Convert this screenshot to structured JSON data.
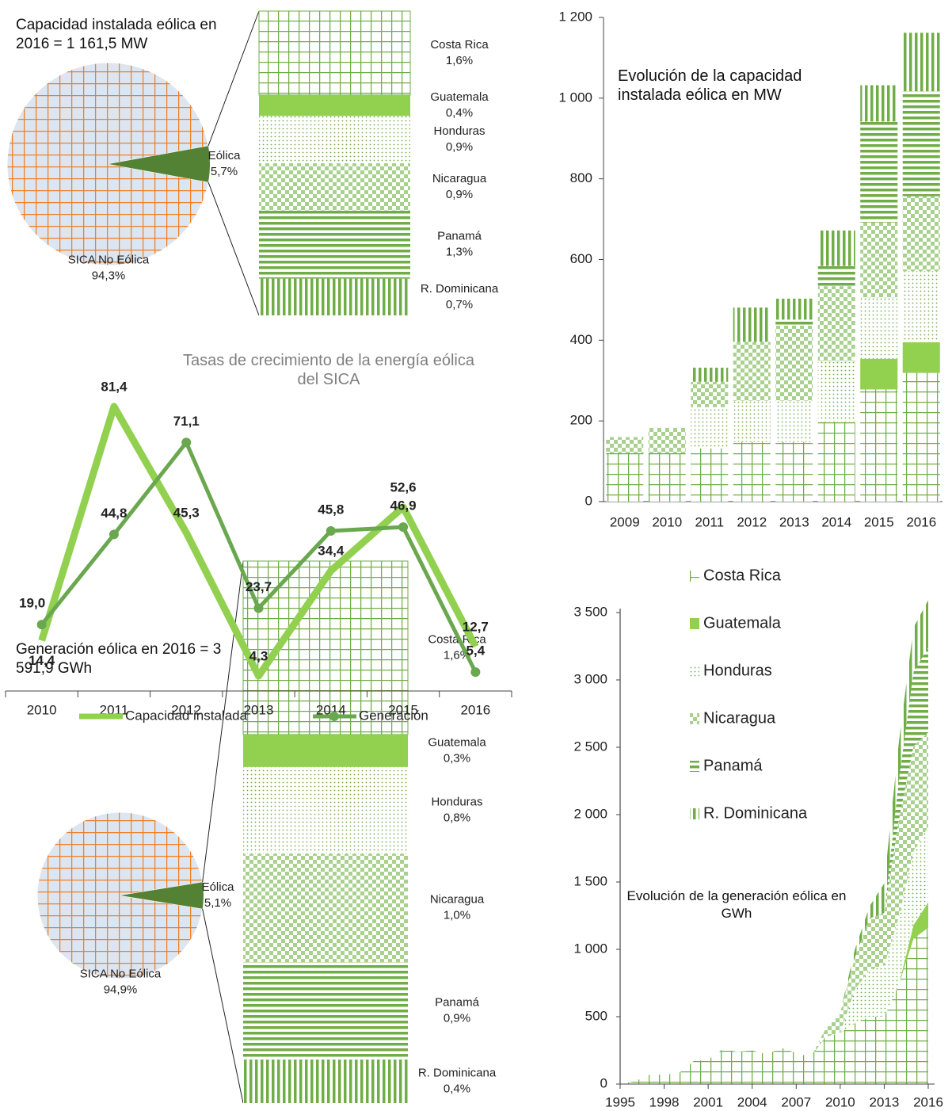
{
  "chart_data": [
    {
      "type": "pie",
      "title": "Capacidad instalada eólica en 2016 = 1 161,5 MW",
      "categories": [
        "SICA No Eólica",
        "Eólica"
      ],
      "values": [
        94.3,
        5.7
      ],
      "value_labels": [
        "94,3%",
        "5,7%"
      ],
      "colors": [
        "#dce6f2",
        "#548235"
      ],
      "hatch_color": "#f07f24",
      "breakdown": {
        "categories": [
          "Costa Rica",
          "Guatemala",
          "Honduras",
          "Nicaragua",
          "Panamá",
          "R. Dominicana"
        ],
        "values": [
          1.6,
          0.4,
          0.9,
          0.9,
          1.3,
          0.7
        ],
        "value_labels": [
          "1,6%",
          "0,4%",
          "0,9%",
          "0,9%",
          "1,3%",
          "0,7%"
        ]
      }
    },
    {
      "type": "line",
      "title": "Tasas de crecimiento de la energía eólica del SICA",
      "categories": [
        "2010",
        "2011",
        "2012",
        "2013",
        "2014",
        "2015",
        "2016"
      ],
      "series": [
        {
          "name": "Capacidad instalada",
          "color": "#92d050",
          "values": [
            14.4,
            81.4,
            45.3,
            4.3,
            34.4,
            52.6,
            12.7
          ],
          "value_labels": [
            "14,4",
            "81,4",
            "45,3",
            "4,3",
            "34,4",
            "52,6",
            "12,7"
          ]
        },
        {
          "name": "Generación",
          "color": "#6aa84f",
          "values": [
            19.0,
            44.8,
            71.1,
            23.7,
            45.8,
            46.9,
            5.4
          ],
          "value_labels": [
            "19,0",
            "44,8",
            "71,1",
            "23,7",
            "45,8",
            "46,9",
            "5,4"
          ]
        }
      ],
      "ylim": [
        0,
        90
      ]
    },
    {
      "type": "bar",
      "stacked": true,
      "title": "Evolución de la capacidad instalada eólica en MW",
      "categories": [
        "2009",
        "2010",
        "2011",
        "2012",
        "2013",
        "2014",
        "2015",
        "2016"
      ],
      "series": [
        {
          "name": "Costa Rica",
          "color": "#70ad47",
          "pattern": "grid",
          "values": [
            120,
            120,
            132,
            148,
            148,
            198,
            278,
            319
          ]
        },
        {
          "name": "Guatemala",
          "color": "#92d050",
          "pattern": "solid",
          "values": [
            0,
            0,
            0,
            0,
            0,
            0,
            76,
            76
          ]
        },
        {
          "name": "Honduras",
          "color": "#70ad47",
          "pattern": "dots",
          "values": [
            0,
            0,
            102,
            102,
            102,
            150,
            152,
            176
          ]
        },
        {
          "name": "Nicaragua",
          "color": "#a9d18e",
          "pattern": "checker",
          "values": [
            40,
            63,
            63,
            146,
            186,
            186,
            186,
            186
          ]
        },
        {
          "name": "Panamá",
          "color": "#70ad47",
          "pattern": "hstripes",
          "values": [
            0,
            0,
            0,
            0,
            15,
            50,
            250,
            260
          ]
        },
        {
          "name": "R. Dominicana",
          "color": "#70ad47",
          "pattern": "vstripes",
          "values": [
            0,
            0,
            35,
            85,
            52,
            88,
            90,
            145
          ]
        }
      ],
      "ylim": [
        0,
        1200
      ],
      "yticks": [
        0,
        200,
        400,
        600,
        800,
        {
          "value": 1000,
          "label": "1 000"
        },
        {
          "value": 1200,
          "label": "1 200"
        }
      ]
    },
    {
      "type": "area",
      "stacked": true,
      "title": "Evolución de la generación eólica en GWh",
      "x": [
        1995,
        1996,
        1997,
        1998,
        1999,
        2000,
        2001,
        2002,
        2003,
        2004,
        2005,
        2006,
        2007,
        2008,
        2009,
        2010,
        2011,
        2012,
        2013,
        2014,
        2015,
        2016
      ],
      "series": [
        {
          "name": "Costa Rica",
          "color": "#70ad47",
          "pattern": "grid",
          "values": [
            0,
            20,
            70,
            70,
            80,
            170,
            180,
            260,
            240,
            250,
            220,
            270,
            230,
            200,
            350,
            380,
            450,
            500,
            500,
            740,
            1080,
            1160
          ]
        },
        {
          "name": "Guatemala",
          "color": "#92d050",
          "pattern": "solid",
          "values": [
            0,
            0,
            0,
            0,
            0,
            0,
            0,
            0,
            0,
            0,
            0,
            0,
            0,
            0,
            0,
            0,
            0,
            0,
            0,
            0,
            100,
            190
          ]
        },
        {
          "name": "Honduras",
          "color": "#70ad47",
          "pattern": "dots",
          "values": [
            0,
            0,
            0,
            0,
            0,
            0,
            0,
            0,
            0,
            0,
            0,
            0,
            0,
            0,
            0,
            0,
            250,
            350,
            380,
            500,
            550,
            560
          ]
        },
        {
          "name": "Nicaragua",
          "color": "#a9d18e",
          "pattern": "checker",
          "values": [
            0,
            0,
            0,
            0,
            0,
            0,
            0,
            0,
            0,
            0,
            0,
            0,
            0,
            0,
            60,
            150,
            240,
            380,
            390,
            720,
            780,
            700
          ]
        },
        {
          "name": "Panamá",
          "color": "#70ad47",
          "pattern": "hstripes",
          "values": [
            0,
            0,
            0,
            0,
            0,
            0,
            0,
            0,
            0,
            0,
            0,
            0,
            0,
            0,
            0,
            0,
            0,
            0,
            0,
            300,
            550,
            630
          ]
        },
        {
          "name": "R. Dominicana",
          "color": "#70ad47",
          "pattern": "vstripes",
          "values": [
            0,
            0,
            0,
            0,
            0,
            0,
            0,
            0,
            0,
            0,
            0,
            0,
            0,
            0,
            0,
            0,
            60,
            90,
            220,
            280,
            330,
            352
          ]
        }
      ],
      "xlim": [
        1995,
        2016
      ],
      "xticks": [
        1995,
        1998,
        2001,
        2004,
        2007,
        2010,
        2013,
        2016
      ],
      "ylim": [
        0,
        3500
      ],
      "yticks": [
        0,
        500,
        {
          "value": 1000,
          "label": "1 000"
        },
        {
          "value": 1500,
          "label": "1 500"
        },
        {
          "value": 2000,
          "label": "2 000"
        },
        {
          "value": 2500,
          "label": "2 500"
        },
        {
          "value": 3000,
          "label": "3 000"
        },
        {
          "value": 3500,
          "label": "3 500"
        }
      ]
    },
    {
      "type": "pie",
      "title": "Generación eólica en 2016 = 3 591,9 GWh",
      "categories": [
        "SICA No Eólica",
        "Eólica"
      ],
      "values": [
        94.9,
        5.1
      ],
      "value_labels": [
        "94,9%",
        "5,1%"
      ],
      "colors": [
        "#dce6f2",
        "#548235"
      ],
      "hatch_color": "#f07f24",
      "breakdown": {
        "categories": [
          "Costa Rica",
          "Guatemala",
          "Honduras",
          "Nicaragua",
          "Panamá",
          "R. Dominicana"
        ],
        "values": [
          1.6,
          0.3,
          0.8,
          1.0,
          0.9,
          0.4
        ],
        "value_labels": [
          "1,6%",
          "0,3%",
          "0,8%",
          "1,0%",
          "0,9%",
          "0,4%"
        ]
      }
    }
  ]
}
